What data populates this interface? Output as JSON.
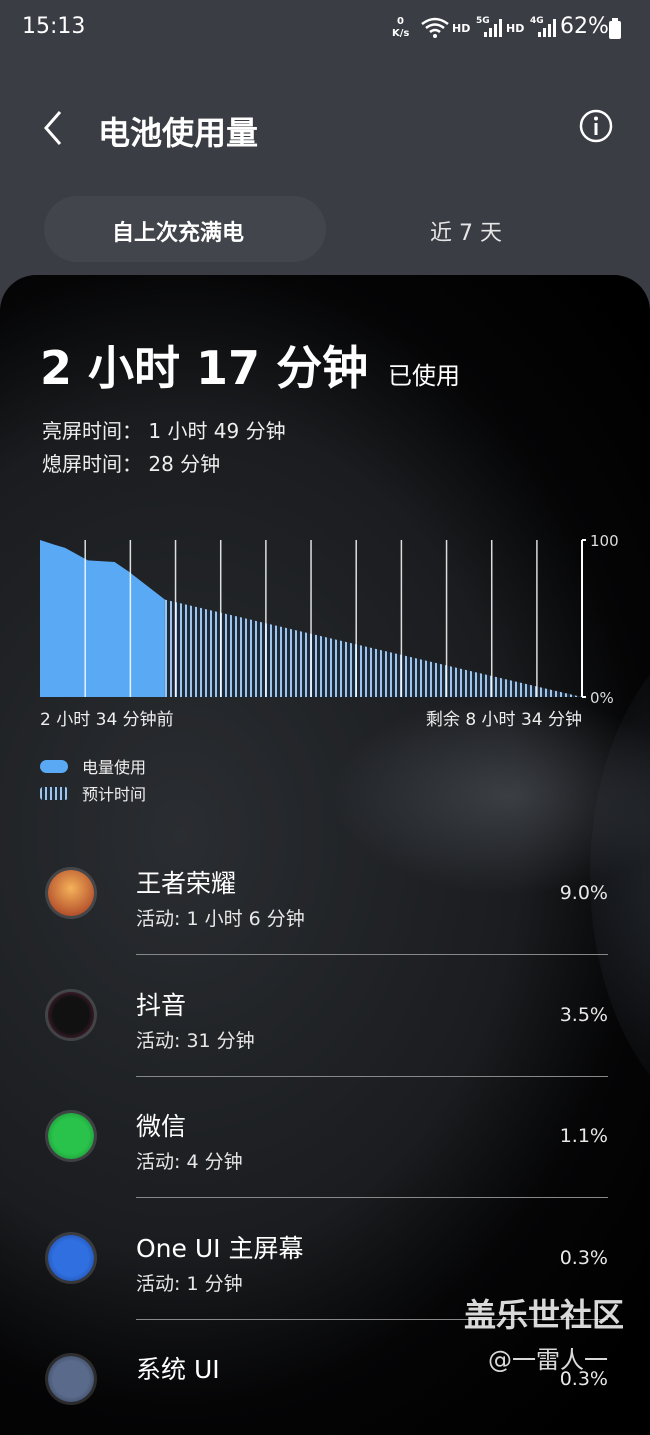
{
  "status_bar": {
    "time": "15:13",
    "net_speed": "0",
    "net_unit": "K/s",
    "hd1": "HD",
    "sim1": "5G",
    "hd2": "HD",
    "sim2": "4G",
    "battery": "62%"
  },
  "header": {
    "title": "电池使用量"
  },
  "tabs": [
    "自上次充满电",
    "近 7 天"
  ],
  "summary": {
    "used_time": "2 小时 17 分钟",
    "used_label": "已使用",
    "screen_on": "亮屏时间：  1 小时 49 分钟",
    "screen_off": "熄屏时间：  28 分钟"
  },
  "battery_chart": {
    "type": "area",
    "x": [
      -154,
      -136,
      -123,
      -95,
      -62,
      -45,
      0
    ],
    "values": [
      100,
      97,
      95,
      87,
      86,
      80,
      62
    ],
    "projection_x": [
      0,
      514
    ],
    "projection_values": [
      62,
      0
    ],
    "xlim": [
      -154,
      514
    ],
    "ylim": [
      0,
      100
    ],
    "yticks": [
      {
        "value": 100,
        "label": "100"
      },
      {
        "value": 0,
        "label": "0%"
      }
    ],
    "start_label": "2 小时 34 分钟前",
    "end_label": "剩余 8 小时 34 分钟",
    "color": "#5aa9f5",
    "legend": [
      "电量使用",
      "预计时间"
    ]
  },
  "apps": [
    {
      "name": "王者荣耀",
      "activity": "活动: 1 小时 6 分钟",
      "percent": "9.0%"
    },
    {
      "name": "抖音",
      "activity": "活动: 31 分钟",
      "percent": "3.5%"
    },
    {
      "name": "微信",
      "activity": "活动: 4 分钟",
      "percent": "1.1%"
    },
    {
      "name": "One UI 主屏幕",
      "activity": "活动: 1 分钟",
      "percent": "0.3%"
    },
    {
      "name": "系统 UI",
      "activity": "",
      "percent": "0.3%"
    }
  ],
  "watermark": {
    "site": "盖乐世社区",
    "author": "@一雷人一"
  }
}
